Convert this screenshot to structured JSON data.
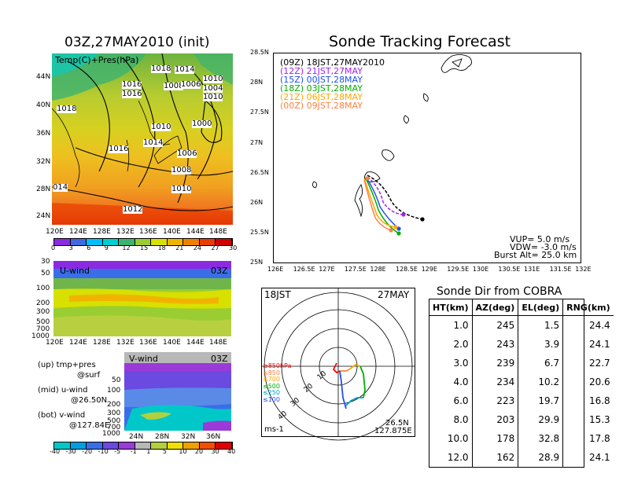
{
  "upper_left": {
    "title": "03Z,27MAY2010 (init)",
    "panel_label": "Temp(C)+Pres(hPa)",
    "lat_ticks": [
      "44N",
      "40N",
      "36N",
      "32N",
      "28N",
      "24N"
    ],
    "lon_ticks": [
      "120E",
      "124E",
      "128E",
      "132E",
      "136E",
      "140E",
      "144E",
      "148E"
    ],
    "isobars": [
      "1018",
      "1014",
      "1010",
      "1016",
      "1008",
      "1004",
      "1006",
      "1010",
      "1016",
      "1018",
      "1010",
      "1000",
      "1014",
      "1016",
      "1006",
      "1008",
      "1010",
      "014",
      "1012"
    ],
    "colorbar": [
      "0",
      "3",
      "6",
      "9",
      "12",
      "15",
      "18",
      "21",
      "24",
      "27",
      "30"
    ],
    "colors": [
      "#8a2be2",
      "#4169e1",
      "#00bfff",
      "#00ced1",
      "#3cb371",
      "#9acd32",
      "#d8e000",
      "#f0b400",
      "#f08000",
      "#e83c00",
      "#d00000"
    ]
  },
  "u_wind": {
    "label": "U-wind",
    "time": "03Z",
    "p_ticks": [
      "30",
      "50",
      "100",
      "200",
      "300",
      "500",
      "700",
      "1000"
    ],
    "lon_ticks": [
      "120E",
      "124E",
      "128E",
      "132E",
      "136E",
      "140E",
      "144E",
      "148E"
    ]
  },
  "v_wind": {
    "label": "V-wind",
    "time": "03Z",
    "p_ticks": [
      "50",
      "100",
      "200",
      "300",
      "500",
      "700",
      "1000"
    ],
    "lat_ticks": [
      "24N",
      "28N",
      "32N",
      "36N"
    ],
    "colorbar": [
      "-40",
      "-30",
      "-20",
      "-10",
      "-5",
      "-1",
      "1",
      "5",
      "10",
      "20",
      "30",
      "40"
    ],
    "colors": [
      "#00c8c8",
      "#00a0e0",
      "#3a6ee8",
      "#6a4ae0",
      "#9a3ad8",
      "#b8b8b8",
      "#b0d040",
      "#f0e000",
      "#f0a000",
      "#f05000",
      "#e00000"
    ]
  },
  "legend_notes": {
    "up": "(up) tmp+pres",
    "up_sub": "@surf",
    "mid": "(mid) u-wind",
    "mid_sub": "@26.50N",
    "bot": "(bot) v-wind",
    "bot_sub": "@127.84E"
  },
  "tracking": {
    "title": "Sonde Tracking Forecast",
    "lat_ticks": [
      "28.5N",
      "28N",
      "27.5N",
      "27N",
      "26.5N",
      "26N",
      "25.5N",
      "25N"
    ],
    "lon_ticks": [
      "126E",
      "126.5E",
      "127E",
      "127.5E",
      "128E",
      "128.5E",
      "129E",
      "129.5E",
      "130E",
      "130.5E",
      "131E",
      "131.5E",
      "132E"
    ],
    "legend": [
      {
        "code": "(09Z)",
        "text": "18JST,27MAY2010",
        "color": "#000000"
      },
      {
        "code": "(12Z)",
        "text": "21JST,27MAY",
        "color": "#a020f0"
      },
      {
        "code": "(15Z)",
        "text": "00JST,28MAY",
        "color": "#2050f0"
      },
      {
        "code": "(18Z)",
        "text": "03JST,28MAY",
        "color": "#00b000"
      },
      {
        "code": "(21Z)",
        "text": "06JST,28MAY",
        "color": "#ffa500"
      },
      {
        "code": "(00Z)",
        "text": "09JST,28MAY",
        "color": "#ff8040"
      }
    ],
    "params": [
      "VUP= 5.0 m/s",
      "VDW= -3.0 m/s",
      "Burst Alt= 25.0 km"
    ]
  },
  "polar": {
    "time_label": "18JST",
    "date_label": "27MAY",
    "range_labels": [
      "10",
      "20",
      "30",
      "40"
    ],
    "level_legend": [
      {
        "text": "≥850hPa",
        "color": "#ff0000"
      },
      {
        "text": "≤850",
        "color": "#ff8040"
      },
      {
        "text": "≤700",
        "color": "#ffa500"
      },
      {
        "text": "≤500",
        "color": "#00b000"
      },
      {
        "text": "≤250",
        "color": "#00a0c0"
      },
      {
        "text": "≤100",
        "color": "#2050f0"
      }
    ],
    "units": "ms-1",
    "loc_lat": "26.5N",
    "loc_lon": "127.875E"
  },
  "chart_data": {
    "type": "table",
    "title": "Sonde Dir from COBRA",
    "columns": [
      "HT(km)",
      "AZ(deg)",
      "EL(deg)",
      "RNG(km)"
    ],
    "rows": [
      [
        "1.0",
        "245",
        "1.5",
        "24.4"
      ],
      [
        "2.0",
        "243",
        "3.9",
        "24.1"
      ],
      [
        "3.0",
        "239",
        "6.7",
        "22.7"
      ],
      [
        "4.0",
        "234",
        "10.2",
        "20.6"
      ],
      [
        "6.0",
        "223",
        "19.7",
        "16.8"
      ],
      [
        "8.0",
        "203",
        "29.9",
        "15.3"
      ],
      [
        "10.0",
        "178",
        "32.8",
        "17.8"
      ],
      [
        "12.0",
        "162",
        "28.9",
        "24.1"
      ]
    ]
  }
}
